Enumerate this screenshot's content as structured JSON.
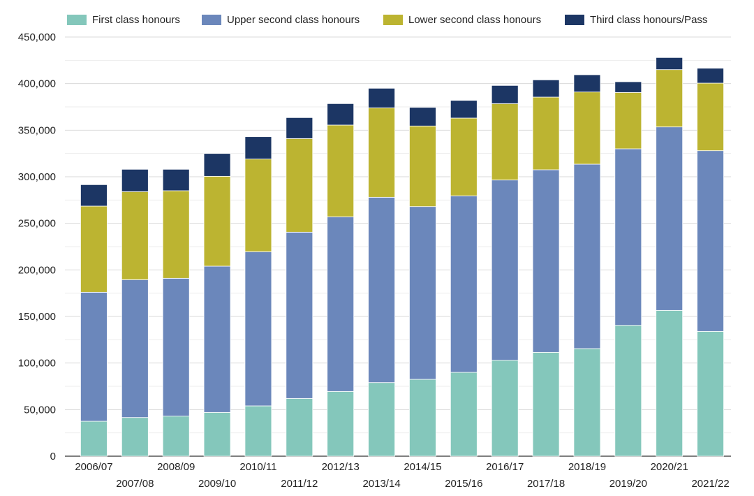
{
  "chart_data": {
    "type": "bar",
    "stacked": true,
    "categories": [
      "2006/07",
      "2007/08",
      "2008/09",
      "2009/10",
      "2010/11",
      "2011/12",
      "2012/13",
      "2013/14",
      "2014/15",
      "2015/16",
      "2016/17",
      "2017/18",
      "2018/19",
      "2019/20",
      "2020/21",
      "2021/22"
    ],
    "series": [
      {
        "name": "First class honours",
        "color": "#84c7bb",
        "values": [
          37500,
          41500,
          43000,
          47000,
          54000,
          62000,
          69500,
          79000,
          82500,
          90000,
          103000,
          111500,
          115500,
          140500,
          156500,
          134000
        ]
      },
      {
        "name": "Upper second class honours",
        "color": "#6b87bb",
        "values": [
          138500,
          148000,
          148000,
          157000,
          165500,
          178500,
          187500,
          199000,
          185500,
          189500,
          193500,
          196000,
          198000,
          189500,
          197000,
          194000
        ]
      },
      {
        "name": "Lower second class honours",
        "color": "#bcb431",
        "values": [
          92500,
          94500,
          94000,
          96500,
          99500,
          100500,
          98500,
          96000,
          86500,
          83500,
          82000,
          78000,
          77500,
          60500,
          61500,
          72500
        ]
      },
      {
        "name": "Third class honours/Pass",
        "color": "#1c3664",
        "values": [
          23000,
          24000,
          23000,
          24500,
          24000,
          22500,
          23000,
          21000,
          20000,
          19000,
          19500,
          18500,
          18500,
          11500,
          13000,
          16000
        ]
      }
    ],
    "y_ticks": [
      "0",
      "50,000",
      "100,000",
      "150,000",
      "200,000",
      "250,000",
      "300,000",
      "350,000",
      "400,000",
      "450,000"
    ],
    "ylim": [
      0,
      450000
    ],
    "legend_position": "top",
    "grid": true,
    "title": "",
    "xlabel": "",
    "ylabel": ""
  }
}
